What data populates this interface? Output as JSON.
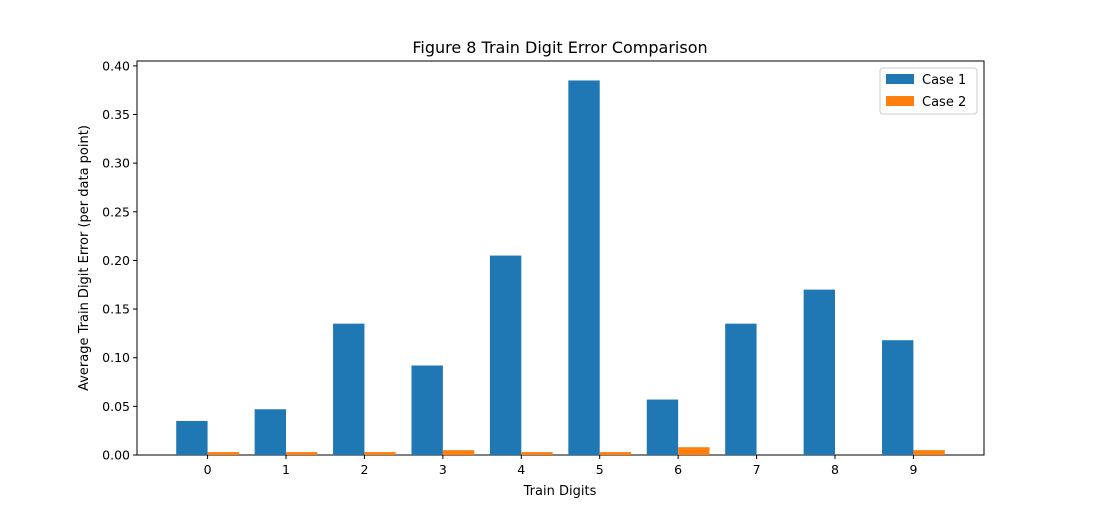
{
  "chart_data": {
    "type": "bar",
    "title": "Figure 8 Train Digit Error Comparison",
    "xlabel": "Train Digits",
    "ylabel": "Average Train Digit Error (per data point)",
    "categories": [
      "0",
      "1",
      "2",
      "3",
      "4",
      "5",
      "6",
      "7",
      "8",
      "9"
    ],
    "ylim": [
      0,
      0.405
    ],
    "yticks": [
      0.0,
      0.05,
      0.1,
      0.15,
      0.2,
      0.25,
      0.3,
      0.35,
      0.4
    ],
    "ytick_labels": [
      "0.00",
      "0.05",
      "0.10",
      "0.15",
      "0.20",
      "0.25",
      "0.30",
      "0.35",
      "0.40"
    ],
    "grid": false,
    "legend_position": "top-right",
    "series": [
      {
        "name": "Case 1",
        "color": "#1f77b4",
        "values": [
          0.035,
          0.047,
          0.135,
          0.092,
          0.205,
          0.385,
          0.057,
          0.135,
          0.17,
          0.118
        ]
      },
      {
        "name": "Case 2",
        "color": "#ff7f0e",
        "values": [
          0.003,
          0.003,
          0.003,
          0.005,
          0.003,
          0.003,
          0.008,
          0.0,
          0.0,
          0.005
        ]
      }
    ]
  }
}
